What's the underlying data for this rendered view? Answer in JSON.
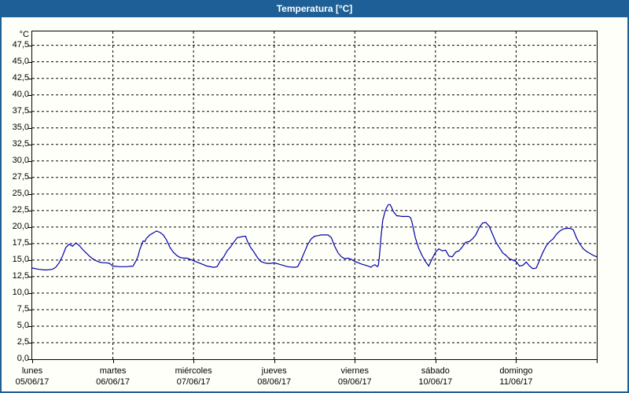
{
  "window": {
    "title": "Temperatura [°C]"
  },
  "colors": {
    "frame": "#1d5f96",
    "titlebar_bg": "#1d5f96",
    "titlebar_text": "#ffffff",
    "line": "#0000a8",
    "grid": "#000000",
    "axis": "#000000",
    "background": "#fffffa"
  },
  "chart_data": {
    "type": "line",
    "title": "Temperatura [°C]",
    "xlabel": "",
    "ylabel": "°C",
    "ylim": [
      0,
      49.6
    ],
    "ytick_step": 2.5,
    "grid": "dashed",
    "legend": "none",
    "ytick_labels": [
      "0,0",
      "2,5",
      "5,0",
      "7,5",
      "10,0",
      "12,5",
      "15,0",
      "17,5",
      "20,0",
      "22,5",
      "25,0",
      "27,5",
      "30,0",
      "32,5",
      "35,0",
      "37,5",
      "40,0",
      "42,5",
      "45,0",
      "47,5"
    ],
    "x_axis": {
      "unit": "hours",
      "range_hours": [
        0,
        168
      ],
      "days": [
        {
          "name": "lunes",
          "date": "05/06/17"
        },
        {
          "name": "martes",
          "date": "06/06/17"
        },
        {
          "name": "miércoles",
          "date": "07/06/17"
        },
        {
          "name": "jueves",
          "date": "08/06/17"
        },
        {
          "name": "viernes",
          "date": "09/06/17"
        },
        {
          "name": "sábado",
          "date": "10/06/17"
        },
        {
          "name": "domingo",
          "date": "11/06/17"
        }
      ]
    },
    "series": [
      {
        "name": "Temperatura",
        "color": "#0000a8",
        "points": [
          [
            0,
            13.8
          ],
          [
            2,
            13.6
          ],
          [
            4,
            13.5
          ],
          [
            6,
            13.6
          ],
          [
            7,
            13.9
          ],
          [
            8,
            14.6
          ],
          [
            9,
            15.6
          ],
          [
            10,
            16.9
          ],
          [
            11,
            17.4
          ],
          [
            12,
            17.1
          ],
          [
            13,
            17.6
          ],
          [
            14,
            17.2
          ],
          [
            15,
            16.6
          ],
          [
            16,
            16.1
          ],
          [
            17,
            15.6
          ],
          [
            18,
            15.2
          ],
          [
            19,
            14.9
          ],
          [
            20,
            14.7
          ],
          [
            21,
            14.6
          ],
          [
            22,
            14.6
          ],
          [
            23,
            14.5
          ],
          [
            24,
            14.1
          ],
          [
            26,
            14.0
          ],
          [
            28,
            14.0
          ],
          [
            30,
            14.1
          ],
          [
            31,
            15.0
          ],
          [
            31.5,
            15.6
          ],
          [
            32,
            16.6
          ],
          [
            33,
            17.9
          ],
          [
            33.5,
            17.8
          ],
          [
            34,
            18.3
          ],
          [
            35,
            18.8
          ],
          [
            36,
            19.1
          ],
          [
            37,
            19.4
          ],
          [
            38,
            19.2
          ],
          [
            39,
            18.8
          ],
          [
            40,
            18.0
          ],
          [
            41,
            16.9
          ],
          [
            42,
            16.2
          ],
          [
            43,
            15.7
          ],
          [
            44,
            15.4
          ],
          [
            45,
            15.3
          ],
          [
            46,
            15.3
          ],
          [
            47,
            15.1
          ],
          [
            48,
            14.9
          ],
          [
            50,
            14.5
          ],
          [
            52,
            14.1
          ],
          [
            54,
            13.9
          ],
          [
            55,
            14.0
          ],
          [
            56,
            14.9
          ],
          [
            57,
            15.5
          ],
          [
            58,
            16.4
          ],
          [
            59,
            17.0
          ],
          [
            60,
            17.7
          ],
          [
            61,
            18.4
          ],
          [
            62,
            18.5
          ],
          [
            63,
            18.6
          ],
          [
            63.5,
            18.6
          ],
          [
            64,
            17.9
          ],
          [
            65,
            16.9
          ],
          [
            66,
            16.2
          ],
          [
            67,
            15.4
          ],
          [
            68,
            14.8
          ],
          [
            69,
            14.6
          ],
          [
            70,
            14.5
          ],
          [
            71,
            14.5
          ],
          [
            72,
            14.6
          ],
          [
            74,
            14.3
          ],
          [
            76,
            14.0
          ],
          [
            78,
            13.9
          ],
          [
            79,
            14.0
          ],
          [
            80,
            15.0
          ],
          [
            81,
            16.2
          ],
          [
            82,
            17.4
          ],
          [
            83,
            18.2
          ],
          [
            84,
            18.6
          ],
          [
            85,
            18.7
          ],
          [
            86,
            18.8
          ],
          [
            87,
            18.8
          ],
          [
            88,
            18.8
          ],
          [
            89,
            18.4
          ],
          [
            90,
            17.1
          ],
          [
            91,
            16.1
          ],
          [
            92,
            15.5
          ],
          [
            93,
            15.2
          ],
          [
            94,
            15.3
          ],
          [
            95,
            15.1
          ],
          [
            96,
            14.8
          ],
          [
            98,
            14.4
          ],
          [
            100,
            14.1
          ],
          [
            100.8,
            13.9
          ],
          [
            101.5,
            14.2
          ],
          [
            102,
            14.3
          ],
          [
            102.7,
            14.0
          ],
          [
            103,
            14.2
          ],
          [
            103.3,
            15.5
          ],
          [
            103.8,
            18.5
          ],
          [
            104.3,
            21.0
          ],
          [
            105,
            22.4
          ],
          [
            105.5,
            23.0
          ],
          [
            106,
            23.4
          ],
          [
            106.5,
            23.4
          ],
          [
            107,
            22.9
          ],
          [
            107.5,
            22.3
          ],
          [
            108,
            22.0
          ],
          [
            108.5,
            21.7
          ],
          [
            109,
            21.7
          ],
          [
            110,
            21.6
          ],
          [
            111,
            21.6
          ],
          [
            112,
            21.6
          ],
          [
            112.6,
            21.4
          ],
          [
            113,
            20.8
          ],
          [
            114,
            18.4
          ],
          [
            115,
            16.8
          ],
          [
            116,
            15.7
          ],
          [
            117,
            14.8
          ],
          [
            118,
            14.1
          ],
          [
            119,
            15.2
          ],
          [
            120,
            16.2
          ],
          [
            121,
            16.7
          ],
          [
            122,
            16.4
          ],
          [
            123,
            16.5
          ],
          [
            124,
            15.6
          ],
          [
            125,
            15.5
          ],
          [
            126,
            16.2
          ],
          [
            127,
            16.4
          ],
          [
            128,
            17.0
          ],
          [
            129,
            17.7
          ],
          [
            130,
            17.8
          ],
          [
            131,
            18.2
          ],
          [
            132,
            18.8
          ],
          [
            133,
            19.9
          ],
          [
            134,
            20.6
          ],
          [
            135,
            20.7
          ],
          [
            136,
            20.1
          ],
          [
            137,
            18.9
          ],
          [
            138,
            17.7
          ],
          [
            139,
            16.9
          ],
          [
            140,
            16.1
          ],
          [
            141,
            15.7
          ],
          [
            142,
            15.2
          ],
          [
            143,
            15.0
          ],
          [
            144,
            14.8
          ],
          [
            145,
            14.1
          ],
          [
            146,
            14.2
          ],
          [
            147,
            14.7
          ],
          [
            148,
            14.1
          ],
          [
            149,
            13.7
          ],
          [
            150,
            13.8
          ],
          [
            151,
            15.0
          ],
          [
            152,
            16.2
          ],
          [
            153,
            17.2
          ],
          [
            154,
            17.8
          ],
          [
            154.5,
            18.0
          ],
          [
            155,
            18.2
          ],
          [
            156,
            18.9
          ],
          [
            157,
            19.4
          ],
          [
            158,
            19.7
          ],
          [
            159,
            19.8
          ],
          [
            160,
            19.8
          ],
          [
            161,
            19.6
          ],
          [
            162,
            18.3
          ],
          [
            163,
            17.4
          ],
          [
            164,
            16.7
          ],
          [
            165,
            16.3
          ],
          [
            166,
            16.0
          ],
          [
            167,
            15.7
          ],
          [
            168,
            15.5
          ]
        ]
      }
    ]
  }
}
